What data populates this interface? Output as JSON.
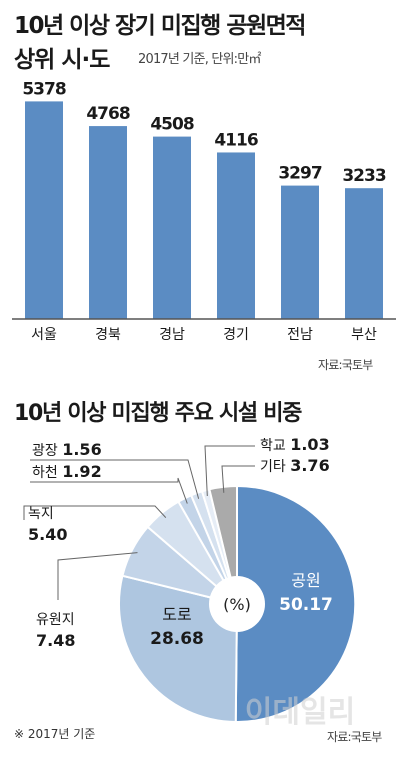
{
  "headings": {
    "title_line1": "10년 이상 장기 미집행 공원면적",
    "title_line2": "상위 시·도",
    "subtitle": "2017년 기준, 단위:만㎡",
    "source1": "자료:국토부",
    "title_pie": "10년 이상 미집행 주요 시설 비중",
    "note": "※ 2017년 기준",
    "source2": "자료:국토부",
    "watermark": "이데일리"
  },
  "chart_data": [
    {
      "type": "bar",
      "title": "10년 이상 장기 미집행 공원면적 상위 시·도",
      "subtitle": "2017년 기준, 단위:만㎡",
      "categories": [
        "서울",
        "경북",
        "경남",
        "경기",
        "전남",
        "부산"
      ],
      "values": [
        5378,
        4768,
        4508,
        4116,
        3297,
        3233
      ],
      "value_labels": [
        "5378",
        "4768",
        "4508",
        "4116",
        "3297",
        "3233"
      ],
      "ylim": [
        0,
        6500
      ],
      "grid": false,
      "color": "#5b8cc3"
    },
    {
      "type": "pie",
      "title": "10년 이상 미집행 주요 시설 비중",
      "center_label": "(%)",
      "slices": [
        {
          "name": "공원",
          "value": 50.17,
          "value_text": "50.17",
          "color": "#5b8cc3"
        },
        {
          "name": "도로",
          "value": 28.68,
          "value_text": "28.68",
          "color": "#aec6e0"
        },
        {
          "name": "유원지",
          "value": 7.48,
          "value_text": "7.48",
          "color": "#c3d4e8"
        },
        {
          "name": "녹지",
          "value": 5.4,
          "value_text": "5.40",
          "color": "#d5e1ef"
        },
        {
          "name": "하천",
          "value": 1.92,
          "value_text": "1.92",
          "color": "#c3d4e8"
        },
        {
          "name": "광장",
          "value": 1.56,
          "value_text": "1.56",
          "color": "#d5e1ef"
        },
        {
          "name": "학교",
          "value": 1.03,
          "value_text": "1.03",
          "color": "#e6edf6"
        },
        {
          "name": "기타",
          "value": 3.76,
          "value_text": "3.76",
          "color": "#aaaaaa"
        }
      ]
    }
  ]
}
